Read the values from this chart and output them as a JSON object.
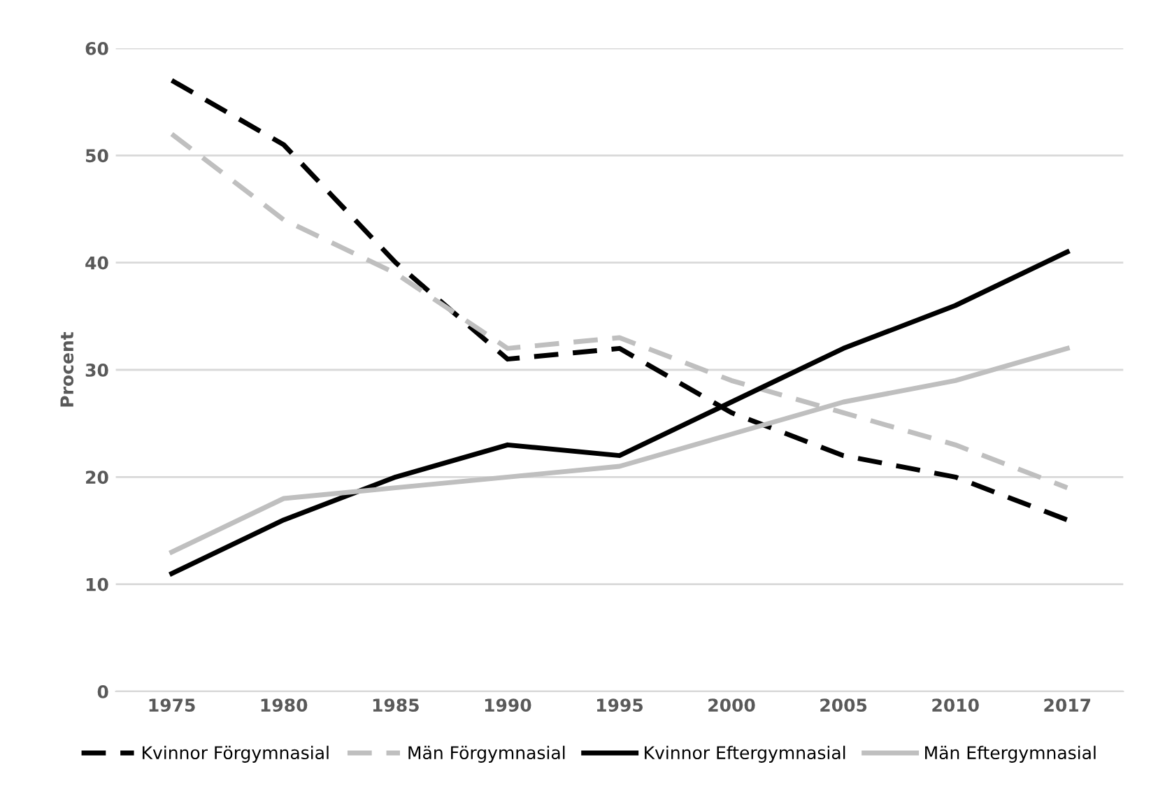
{
  "chart_data": {
    "type": "line",
    "ylabel": "Procent",
    "categories": [
      "1975",
      "1980",
      "1985",
      "1990",
      "1995",
      "2000",
      "2005",
      "2010",
      "2017"
    ],
    "series": [
      {
        "name": "Kvinnor Förgymnasial",
        "color": "#000000",
        "line_style": "dashed",
        "values": [
          57,
          51,
          40,
          31,
          32,
          26,
          22,
          20,
          16
        ]
      },
      {
        "name": "Män Förgymnasial",
        "color": "#bfbfbf",
        "line_style": "dashed",
        "values": [
          52,
          44,
          39,
          32,
          33,
          29,
          26,
          23,
          19
        ]
      },
      {
        "name": "Kvinnor Eftergymnasial",
        "color": "#000000",
        "line_style": "solid",
        "values": [
          11,
          16,
          20,
          23,
          22,
          27,
          32,
          36,
          41
        ]
      },
      {
        "name": "Män Eftergymnasial",
        "color": "#bfbfbf",
        "line_style": "solid",
        "values": [
          13,
          18,
          19,
          20,
          21,
          24,
          27,
          29,
          32
        ]
      }
    ],
    "ylim": [
      0,
      60
    ],
    "yticks": [
      0,
      10,
      20,
      30,
      40,
      50,
      60
    ],
    "grid": "y",
    "legend": "bottom",
    "marker": "none"
  }
}
